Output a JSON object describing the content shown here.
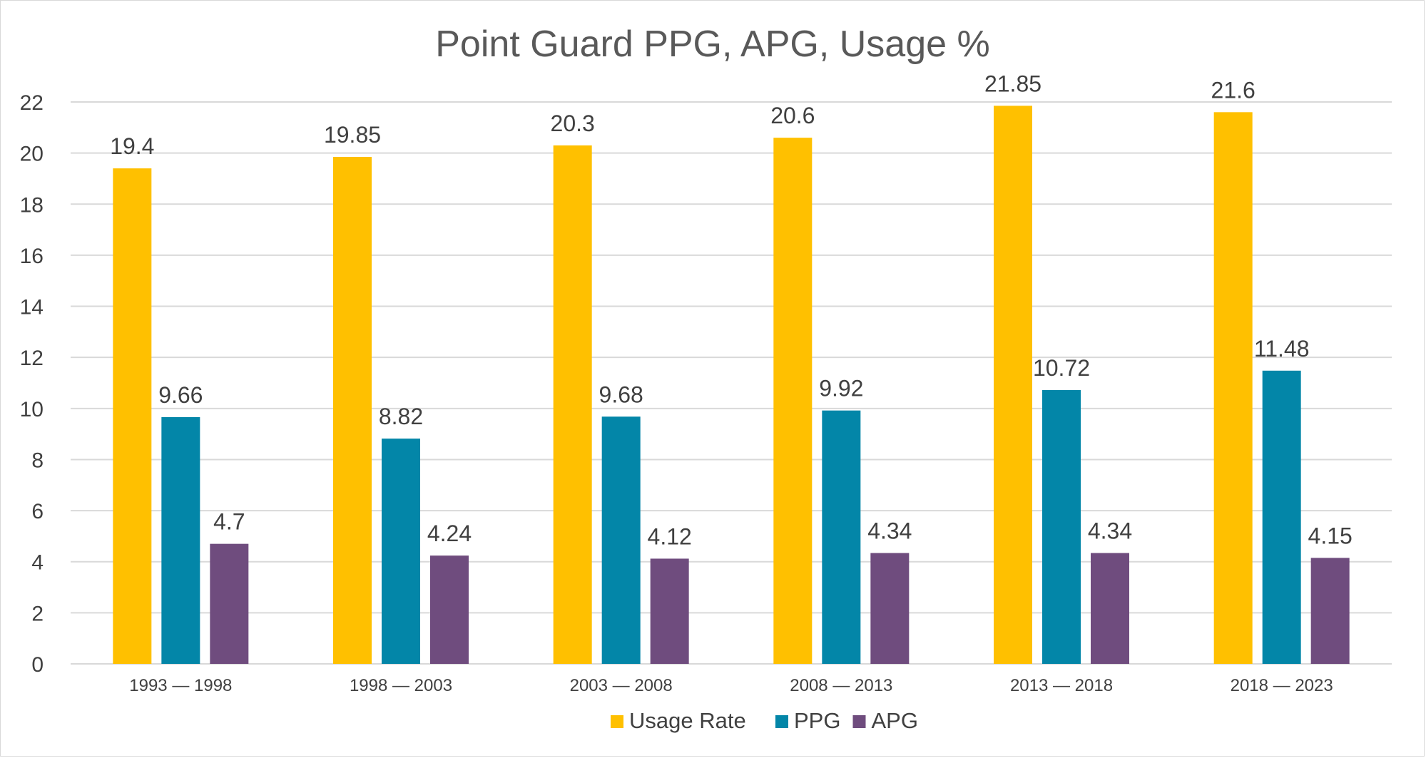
{
  "chart_data": {
    "type": "bar",
    "title": "Point Guard PPG, APG, Usage %",
    "categories": [
      "1993 — 1998",
      "1998 — 2003",
      "2003 — 2008",
      "2008 — 2013",
      "2013 — 2018",
      "2018 — 2023"
    ],
    "series": [
      {
        "name": "Usage Rate",
        "color": "#FFC000",
        "values": [
          19.4,
          19.85,
          20.3,
          20.6,
          21.85,
          21.6
        ]
      },
      {
        "name": "PPG",
        "color": "#0386A8",
        "values": [
          9.66,
          8.82,
          9.68,
          9.92,
          10.72,
          11.48
        ]
      },
      {
        "name": "APG",
        "color": "#6F4C7E",
        "values": [
          4.7,
          4.24,
          4.12,
          4.34,
          4.34,
          4.15
        ]
      }
    ],
    "ylim": [
      0,
      22
    ],
    "yticks": [
      0,
      2,
      4,
      6,
      8,
      10,
      12,
      14,
      16,
      18,
      20,
      22
    ],
    "grid": true,
    "legend_position": "bottom"
  }
}
